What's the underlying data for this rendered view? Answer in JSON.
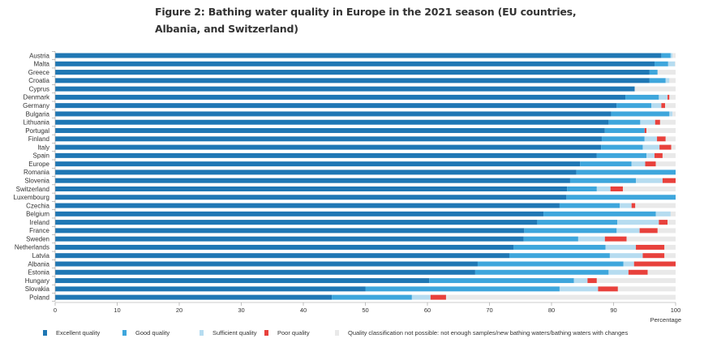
{
  "chart_data": {
    "type": "bar",
    "orientation": "horizontal",
    "stacked": true,
    "title": "Figure 2: Bathing water quality in Europe in the 2021 season (EU countries, Albania, and Switzerland)",
    "title_lines": [
      "Figure 2: Bathing water quality in Europe in the 2021 season (EU countries,",
      "Albania, and Switzerland)"
    ],
    "xlabel": "Percentage",
    "ylabel": "",
    "xlim": [
      0,
      100
    ],
    "xticks": [
      0,
      10,
      20,
      30,
      40,
      50,
      60,
      70,
      80,
      90,
      100
    ],
    "grid": false,
    "legend_position": "bottom",
    "categories": [
      "Austria",
      "Malta",
      "Greece",
      "Croatia",
      "Cyprus",
      "Denmark",
      "Germany",
      "Bulgaria",
      "Lithuania",
      "Portugal",
      "Finland",
      "Italy",
      "Spain",
      "Europe",
      "Romania",
      "Slovenia",
      "Switzerland",
      "Luxembourg",
      "Czechia",
      "Belgium",
      "Ireland",
      "France",
      "Sweden",
      "Netherlands",
      "Latvia",
      "Albania",
      "Estonia",
      "Hungary",
      "Slovakia",
      "Poland"
    ],
    "series": [
      {
        "name": "Excellent quality",
        "color": "#1f77b4",
        "values": [
          97.7,
          96.6,
          95.8,
          95.8,
          93.4,
          91.9,
          90.5,
          89.6,
          89.2,
          88.6,
          88.1,
          88.0,
          87.3,
          84.6,
          84.0,
          83.0,
          82.5,
          82.4,
          81.3,
          78.7,
          77.7,
          75.6,
          75.5,
          73.9,
          73.2,
          68.1,
          67.7,
          60.3,
          50.0,
          44.6
        ]
      },
      {
        "name": "Good quality",
        "color": "#3ea6dc",
        "values": [
          1.5,
          2.2,
          1.3,
          2.6,
          0.0,
          5.4,
          5.6,
          9.4,
          5.1,
          6.4,
          6.9,
          6.7,
          8.0,
          8.3,
          16.0,
          10.6,
          4.8,
          17.6,
          9.7,
          18.1,
          12.9,
          14.9,
          8.8,
          14.8,
          16.2,
          23.5,
          21.5,
          23.3,
          31.3,
          12.9
        ]
      },
      {
        "name": "Sufficient quality",
        "color": "#b6dcf0",
        "values": [
          0.3,
          1.1,
          0.0,
          0.6,
          0.0,
          1.4,
          1.6,
          0.5,
          2.4,
          0.0,
          2.0,
          2.7,
          1.3,
          2.2,
          0.0,
          4.3,
          2.2,
          0.0,
          1.9,
          2.4,
          6.7,
          3.7,
          4.3,
          4.9,
          5.3,
          1.7,
          3.2,
          2.2,
          6.2,
          3.0
        ]
      },
      {
        "name": "Poor quality",
        "color": "#e8413c",
        "values": [
          0.0,
          0.0,
          0.0,
          0.0,
          0.0,
          0.3,
          0.6,
          0.0,
          0.8,
          0.3,
          1.4,
          1.9,
          1.3,
          1.7,
          0.0,
          2.1,
          2.0,
          0.0,
          0.6,
          0.0,
          1.4,
          2.9,
          3.5,
          4.6,
          3.5,
          6.7,
          3.1,
          1.5,
          3.2,
          2.5
        ]
      },
      {
        "name": "Quality classification not possible:  not enough samples/new bathing waters/bathing waters with changes",
        "color": "#e9e9e9",
        "values": [
          0.5,
          0.1,
          2.9,
          1.0,
          6.6,
          1.0,
          1.7,
          0.5,
          2.5,
          4.7,
          1.6,
          0.7,
          2.1,
          3.2,
          0.0,
          0.0,
          8.5,
          0.0,
          6.5,
          0.8,
          1.3,
          2.9,
          7.9,
          1.8,
          1.8,
          0.0,
          4.5,
          12.7,
          9.3,
          37.0
        ]
      }
    ]
  }
}
